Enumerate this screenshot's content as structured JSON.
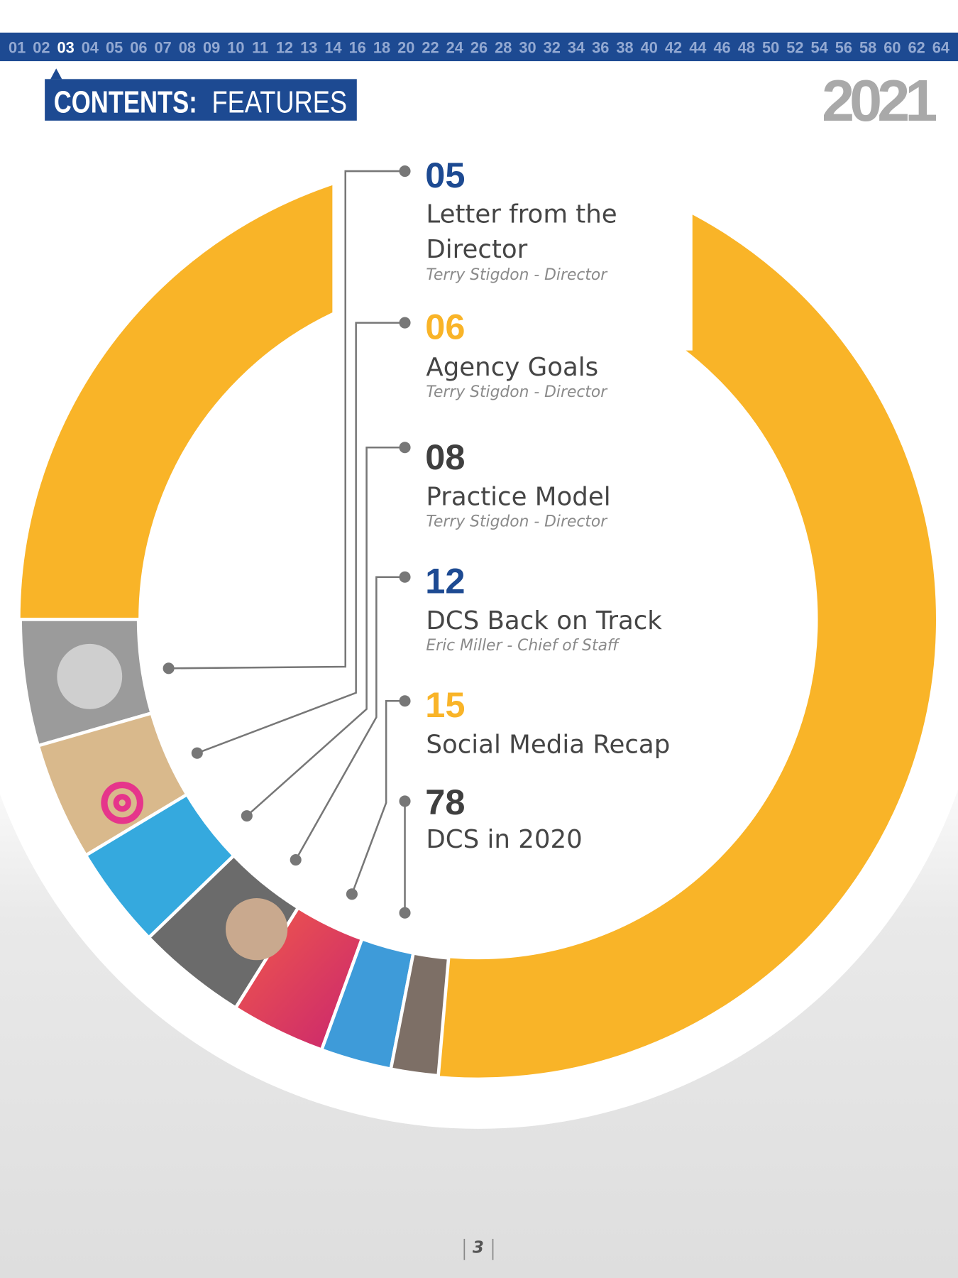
{
  "nav": {
    "pages": [
      "01",
      "02",
      "03",
      "04",
      "05",
      "06",
      "07",
      "08",
      "09",
      "10",
      "11",
      "12",
      "13",
      "14",
      "16",
      "18",
      "20",
      "22",
      "24",
      "26",
      "28",
      "30",
      "32",
      "34",
      "36",
      "38",
      "40",
      "42",
      "44",
      "46",
      "48",
      "50",
      "52",
      "54",
      "56",
      "58",
      "60",
      "62",
      "64"
    ],
    "current": "03"
  },
  "header": {
    "label": "CONTENTS:",
    "section": "FEATURES",
    "year": "2021"
  },
  "entries": [
    {
      "page": "05",
      "color": "#1d4a92",
      "title_lines": [
        "Letter from the",
        "Director"
      ],
      "author": "Terry Stigdon - Director"
    },
    {
      "page": "06",
      "color": "#f9b428",
      "title_lines": [
        "Agency Goals"
      ],
      "author": "Terry Stigdon - Director"
    },
    {
      "page": "08",
      "color": "#3f3f3f",
      "title_lines": [
        "Practice Model"
      ],
      "author": "Terry Stigdon - Director"
    },
    {
      "page": "12",
      "color": "#1d4a92",
      "title_lines": [
        "DCS Back on Track"
      ],
      "author": "Eric Miller - Chief of Staff"
    },
    {
      "page": "15",
      "color": "#f9b428",
      "title_lines": [
        "Social Media Recap"
      ]
    },
    {
      "page": "78",
      "color": "#3f3f3f",
      "title_lines": [
        "DCS in 2020"
      ]
    }
  ],
  "footer": {
    "page": "3"
  }
}
